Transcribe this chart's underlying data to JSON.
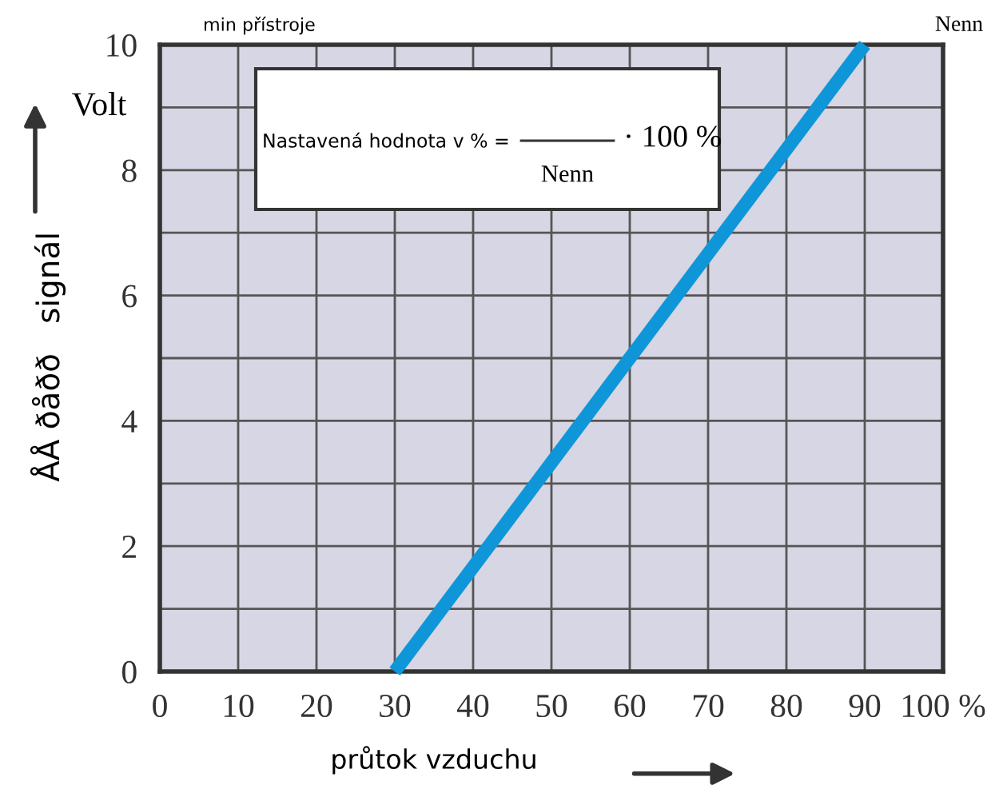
{
  "chart_data": {
    "type": "line",
    "xlabel": "průtok vzduchu",
    "ylabel": "ÅÅ ðåðð   signál",
    "x": [
      30,
      90
    ],
    "series": [
      {
        "color": "#0f96d8",
        "values": [
          0,
          10
        ]
      }
    ],
    "xlim": [
      0,
      100
    ],
    "ylim": [
      0,
      10
    ],
    "xticks": [
      0,
      10,
      20,
      30,
      40,
      50,
      60,
      70,
      80,
      90,
      {
        "value": 100,
        "label": "100 %"
      }
    ],
    "yticks": [
      0,
      {
        "value": 1,
        "label": null
      },
      2,
      {
        "value": 3,
        "label": null
      },
      4,
      {
        "value": 5,
        "label": null
      },
      6,
      {
        "value": 7,
        "label": null
      },
      8,
      {
        "value": 9,
        "label": null
      },
      10
    ],
    "grid": true,
    "marker": "none",
    "line_style": "solid",
    "annotations": [
      "min přístroje",
      "Nenn",
      "Volt",
      "Nastavená hodnota v % =",
      "· 100 %",
      "Nenn"
    ]
  }
}
